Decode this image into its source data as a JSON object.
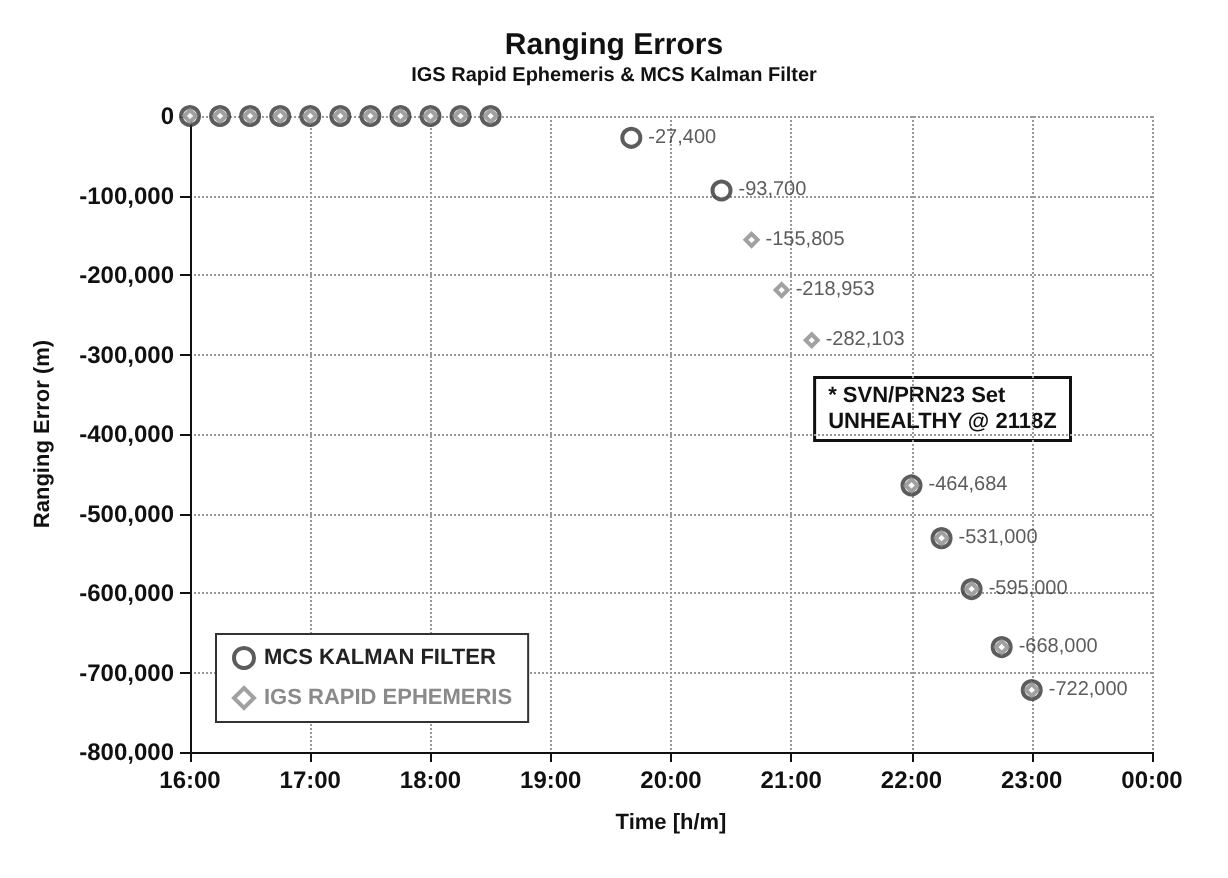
{
  "chart_data": {
    "type": "scatter",
    "title": "Ranging Errors",
    "subtitle": "IGS Rapid Ephemeris & MCS Kalman Filter",
    "xlabel": "Time [h/m]",
    "ylabel": "Ranging Error (m)",
    "annotations": [
      "* SVN/PRN23 Set\nUNHEALTHY @ 2118Z"
    ],
    "xlim": [
      16,
      24
    ],
    "xticks": [
      {
        "value": 16,
        "label": "16:00"
      },
      {
        "value": 17,
        "label": "17:00"
      },
      {
        "value": 18,
        "label": "18:00"
      },
      {
        "value": 19,
        "label": "19:00"
      },
      {
        "value": 20,
        "label": "20:00"
      },
      {
        "value": 21,
        "label": "21:00"
      },
      {
        "value": 22,
        "label": "22:00"
      },
      {
        "value": 23,
        "label": "23:00"
      },
      {
        "value": 24,
        "label": "00:00"
      }
    ],
    "ylim": [
      -800000,
      0
    ],
    "yticks": [
      {
        "value": -800000,
        "label": "-800,000"
      },
      {
        "value": -700000,
        "label": "-700,000"
      },
      {
        "value": -600000,
        "label": "-600,000"
      },
      {
        "value": -500000,
        "label": "-500,000"
      },
      {
        "value": -400000,
        "label": "-400,000"
      },
      {
        "value": -300000,
        "label": "-300,000"
      },
      {
        "value": -200000,
        "label": "-200,000"
      },
      {
        "value": -100000,
        "label": "-100,000"
      },
      {
        "value": 0,
        "label": "0"
      }
    ],
    "grid": true,
    "legend": "bottom left",
    "series": [
      {
        "name": "MCS KALMAN FILTER",
        "color": "#333333",
        "marker": "circle",
        "x": [
          16,
          16.25,
          16.5,
          16.75,
          17,
          17.25,
          17.5,
          17.75,
          18,
          18.25,
          18.5,
          19.67,
          20.42,
          22,
          22.25,
          22.5,
          22.75,
          23
        ],
        "values": [
          0,
          0,
          0,
          0,
          0,
          0,
          0,
          0,
          0,
          0,
          0,
          -27400,
          -93700,
          -464684,
          -531000,
          -595000,
          -668000,
          -722000
        ],
        "value_labels": [
          null,
          null,
          null,
          null,
          null,
          null,
          null,
          null,
          null,
          null,
          null,
          "-27,400",
          "-93,700",
          "-464,684",
          "-531,000",
          "-595,000",
          "-668,000",
          "-722,000"
        ]
      },
      {
        "name": "IGS RAPID EPHEMERIS",
        "color": "#8a8a8a",
        "marker": "diamond",
        "x": [
          16,
          16.25,
          16.5,
          16.75,
          17,
          17.25,
          17.5,
          17.75,
          18,
          18.25,
          18.5,
          20.67,
          20.92,
          21.17,
          22,
          22.25,
          22.5,
          22.75,
          23
        ],
        "values": [
          0,
          0,
          0,
          0,
          0,
          0,
          0,
          0,
          0,
          0,
          0,
          -155805,
          -218953,
          -282103,
          -464684,
          -531000,
          -595000,
          -668000,
          -722000
        ],
        "value_labels": [
          null,
          null,
          null,
          null,
          null,
          null,
          null,
          null,
          null,
          null,
          null,
          "-155,805",
          "-218,953",
          "-282,103",
          null,
          null,
          null,
          null,
          null
        ]
      }
    ]
  }
}
